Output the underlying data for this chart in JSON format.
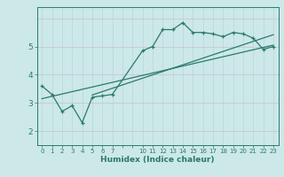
{
  "xlabel": "Humidex (Indice chaleur)",
  "bg_color": "#cce8e8",
  "line_color": "#2a7a6a",
  "grid_color_v": "#b8d8d8",
  "grid_color_h": "#c8c0d0",
  "xtick_labels": [
    "0",
    "1",
    "2",
    "3",
    "4",
    "5",
    "6",
    "7",
    "",
    "",
    "10",
    "11",
    "12",
    "13",
    "14",
    "15",
    "16",
    "17",
    "18",
    "19",
    "20",
    "21",
    "22",
    "23"
  ],
  "ytick_labels": [
    "2",
    "3",
    "4",
    "5"
  ],
  "ytick_vals": [
    2,
    3,
    4,
    5
  ],
  "ylim": [
    1.5,
    6.4
  ],
  "n_xcols": 24,
  "curve_xi": [
    0,
    1,
    2,
    3,
    4,
    5,
    6,
    7,
    10,
    11,
    12,
    13,
    14,
    15,
    16,
    17,
    18,
    19,
    20,
    21,
    22,
    23
  ],
  "curve_y": [
    3.6,
    3.3,
    2.7,
    2.9,
    2.3,
    3.2,
    3.25,
    3.3,
    4.85,
    5.0,
    5.6,
    5.6,
    5.85,
    5.5,
    5.5,
    5.45,
    5.35,
    5.5,
    5.45,
    5.3,
    4.9,
    5.0
  ],
  "line1_xi": [
    0,
    23
  ],
  "line1_y": [
    3.15,
    5.05
  ],
  "line2_xi": [
    5,
    23
  ],
  "line2_y": [
    3.28,
    5.42
  ]
}
